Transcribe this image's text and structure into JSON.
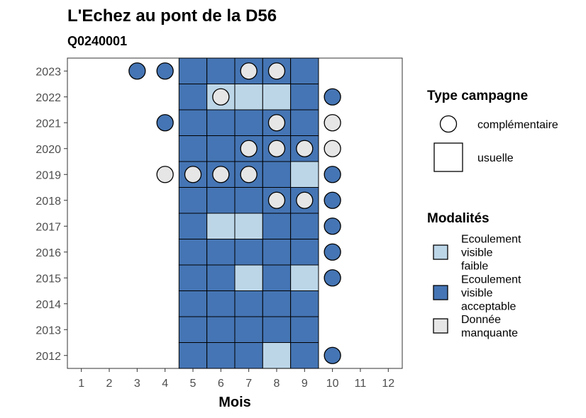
{
  "chart_data": {
    "type": "heatmap",
    "title": "L'Echez au pont de la D56",
    "subtitle": "Q0240001",
    "xlabel": "Mois",
    "ylabel": "",
    "x_ticks": [
      1,
      2,
      3,
      4,
      5,
      6,
      7,
      8,
      9,
      10,
      11,
      12
    ],
    "y_ticks": [
      2012,
      2013,
      2014,
      2015,
      2016,
      2017,
      2018,
      2019,
      2020,
      2021,
      2022,
      2023
    ],
    "colors": {
      "Ecoulement visible faible": "#bcd6e8",
      "Ecoulement visible acceptable": "#4575b4",
      "Donnée manquante": "#e6e6e6"
    },
    "legend_type": {
      "title": "Type campagne",
      "entries": [
        "complémentaire",
        "usuelle"
      ]
    },
    "legend_modalites": {
      "title": "Modalités",
      "entries": [
        {
          "key": "Ecoulement visible faible",
          "lines": [
            "Ecoulement",
            "visible",
            "faible"
          ]
        },
        {
          "key": "Ecoulement visible acceptable",
          "lines": [
            "Ecoulement",
            "visible",
            "acceptable"
          ]
        },
        {
          "key": "Donnée manquante",
          "lines": [
            "Donnée",
            "manquante"
          ]
        }
      ]
    },
    "usuelle": [
      {
        "year": 2023,
        "month": 5,
        "value": "Ecoulement visible acceptable"
      },
      {
        "year": 2023,
        "month": 6,
        "value": "Ecoulement visible acceptable"
      },
      {
        "year": 2023,
        "month": 7,
        "value": "Ecoulement visible acceptable"
      },
      {
        "year": 2023,
        "month": 8,
        "value": "Ecoulement visible acceptable"
      },
      {
        "year": 2023,
        "month": 9,
        "value": "Ecoulement visible acceptable"
      },
      {
        "year": 2022,
        "month": 5,
        "value": "Ecoulement visible acceptable"
      },
      {
        "year": 2022,
        "month": 6,
        "value": "Ecoulement visible faible"
      },
      {
        "year": 2022,
        "month": 7,
        "value": "Ecoulement visible faible"
      },
      {
        "year": 2022,
        "month": 8,
        "value": "Ecoulement visible faible"
      },
      {
        "year": 2022,
        "month": 9,
        "value": "Ecoulement visible acceptable"
      },
      {
        "year": 2021,
        "month": 5,
        "value": "Ecoulement visible acceptable"
      },
      {
        "year": 2021,
        "month": 6,
        "value": "Ecoulement visible acceptable"
      },
      {
        "year": 2021,
        "month": 7,
        "value": "Ecoulement visible acceptable"
      },
      {
        "year": 2021,
        "month": 8,
        "value": "Ecoulement visible acceptable"
      },
      {
        "year": 2021,
        "month": 9,
        "value": "Ecoulement visible acceptable"
      },
      {
        "year": 2020,
        "month": 5,
        "value": "Ecoulement visible acceptable"
      },
      {
        "year": 2020,
        "month": 6,
        "value": "Ecoulement visible acceptable"
      },
      {
        "year": 2020,
        "month": 7,
        "value": "Ecoulement visible acceptable"
      },
      {
        "year": 2020,
        "month": 8,
        "value": "Ecoulement visible acceptable"
      },
      {
        "year": 2020,
        "month": 9,
        "value": "Ecoulement visible acceptable"
      },
      {
        "year": 2019,
        "month": 5,
        "value": "Ecoulement visible acceptable"
      },
      {
        "year": 2019,
        "month": 6,
        "value": "Ecoulement visible acceptable"
      },
      {
        "year": 2019,
        "month": 7,
        "value": "Ecoulement visible acceptable"
      },
      {
        "year": 2019,
        "month": 8,
        "value": "Ecoulement visible acceptable"
      },
      {
        "year": 2019,
        "month": 9,
        "value": "Ecoulement visible faible"
      },
      {
        "year": 2018,
        "month": 5,
        "value": "Ecoulement visible acceptable"
      },
      {
        "year": 2018,
        "month": 6,
        "value": "Ecoulement visible acceptable"
      },
      {
        "year": 2018,
        "month": 7,
        "value": "Ecoulement visible acceptable"
      },
      {
        "year": 2018,
        "month": 8,
        "value": "Ecoulement visible acceptable"
      },
      {
        "year": 2018,
        "month": 9,
        "value": "Ecoulement visible acceptable"
      },
      {
        "year": 2017,
        "month": 5,
        "value": "Ecoulement visible acceptable"
      },
      {
        "year": 2017,
        "month": 6,
        "value": "Ecoulement visible faible"
      },
      {
        "year": 2017,
        "month": 7,
        "value": "Ecoulement visible faible"
      },
      {
        "year": 2017,
        "month": 8,
        "value": "Ecoulement visible acceptable"
      },
      {
        "year": 2017,
        "month": 9,
        "value": "Ecoulement visible acceptable"
      },
      {
        "year": 2016,
        "month": 5,
        "value": "Ecoulement visible acceptable"
      },
      {
        "year": 2016,
        "month": 6,
        "value": "Ecoulement visible acceptable"
      },
      {
        "year": 2016,
        "month": 7,
        "value": "Ecoulement visible acceptable"
      },
      {
        "year": 2016,
        "month": 8,
        "value": "Ecoulement visible acceptable"
      },
      {
        "year": 2016,
        "month": 9,
        "value": "Ecoulement visible acceptable"
      },
      {
        "year": 2015,
        "month": 5,
        "value": "Ecoulement visible acceptable"
      },
      {
        "year": 2015,
        "month": 6,
        "value": "Ecoulement visible acceptable"
      },
      {
        "year": 2015,
        "month": 7,
        "value": "Ecoulement visible faible"
      },
      {
        "year": 2015,
        "month": 8,
        "value": "Ecoulement visible acceptable"
      },
      {
        "year": 2015,
        "month": 9,
        "value": "Ecoulement visible faible"
      },
      {
        "year": 2014,
        "month": 5,
        "value": "Ecoulement visible acceptable"
      },
      {
        "year": 2014,
        "month": 6,
        "value": "Ecoulement visible acceptable"
      },
      {
        "year": 2014,
        "month": 7,
        "value": "Ecoulement visible acceptable"
      },
      {
        "year": 2014,
        "month": 8,
        "value": "Ecoulement visible acceptable"
      },
      {
        "year": 2014,
        "month": 9,
        "value": "Ecoulement visible acceptable"
      },
      {
        "year": 2013,
        "month": 5,
        "value": "Ecoulement visible acceptable"
      },
      {
        "year": 2013,
        "month": 6,
        "value": "Ecoulement visible acceptable"
      },
      {
        "year": 2013,
        "month": 7,
        "value": "Ecoulement visible acceptable"
      },
      {
        "year": 2013,
        "month": 8,
        "value": "Ecoulement visible acceptable"
      },
      {
        "year": 2013,
        "month": 9,
        "value": "Ecoulement visible acceptable"
      },
      {
        "year": 2012,
        "month": 5,
        "value": "Ecoulement visible acceptable"
      },
      {
        "year": 2012,
        "month": 6,
        "value": "Ecoulement visible acceptable"
      },
      {
        "year": 2012,
        "month": 7,
        "value": "Ecoulement visible acceptable"
      },
      {
        "year": 2012,
        "month": 8,
        "value": "Ecoulement visible faible"
      },
      {
        "year": 2012,
        "month": 9,
        "value": "Ecoulement visible acceptable"
      }
    ],
    "complementaire": [
      {
        "year": 2023,
        "month": 3,
        "value": "Ecoulement visible acceptable"
      },
      {
        "year": 2023,
        "month": 4,
        "value": "Ecoulement visible acceptable"
      },
      {
        "year": 2023,
        "month": 7,
        "value": "Donnée manquante"
      },
      {
        "year": 2023,
        "month": 8,
        "value": "Donnée manquante"
      },
      {
        "year": 2022,
        "month": 6,
        "value": "Donnée manquante"
      },
      {
        "year": 2022,
        "month": 10,
        "value": "Ecoulement visible acceptable"
      },
      {
        "year": 2021,
        "month": 4,
        "value": "Ecoulement visible acceptable"
      },
      {
        "year": 2021,
        "month": 8,
        "value": "Donnée manquante"
      },
      {
        "year": 2021,
        "month": 10,
        "value": "Donnée manquante"
      },
      {
        "year": 2020,
        "month": 7,
        "value": "Donnée manquante"
      },
      {
        "year": 2020,
        "month": 8,
        "value": "Donnée manquante"
      },
      {
        "year": 2020,
        "month": 9,
        "value": "Donnée manquante"
      },
      {
        "year": 2020,
        "month": 10,
        "value": "Donnée manquante"
      },
      {
        "year": 2019,
        "month": 4,
        "value": "Donnée manquante"
      },
      {
        "year": 2019,
        "month": 5,
        "value": "Donnée manquante"
      },
      {
        "year": 2019,
        "month": 6,
        "value": "Donnée manquante"
      },
      {
        "year": 2019,
        "month": 7,
        "value": "Donnée manquante"
      },
      {
        "year": 2019,
        "month": 10,
        "value": "Ecoulement visible acceptable"
      },
      {
        "year": 2018,
        "month": 8,
        "value": "Donnée manquante"
      },
      {
        "year": 2018,
        "month": 9,
        "value": "Donnée manquante"
      },
      {
        "year": 2018,
        "month": 10,
        "value": "Ecoulement visible acceptable"
      },
      {
        "year": 2017,
        "month": 10,
        "value": "Ecoulement visible acceptable"
      },
      {
        "year": 2016,
        "month": 10,
        "value": "Ecoulement visible acceptable"
      },
      {
        "year": 2015,
        "month": 10,
        "value": "Ecoulement visible acceptable"
      },
      {
        "year": 2012,
        "month": 10,
        "value": "Ecoulement visible acceptable"
      }
    ]
  }
}
